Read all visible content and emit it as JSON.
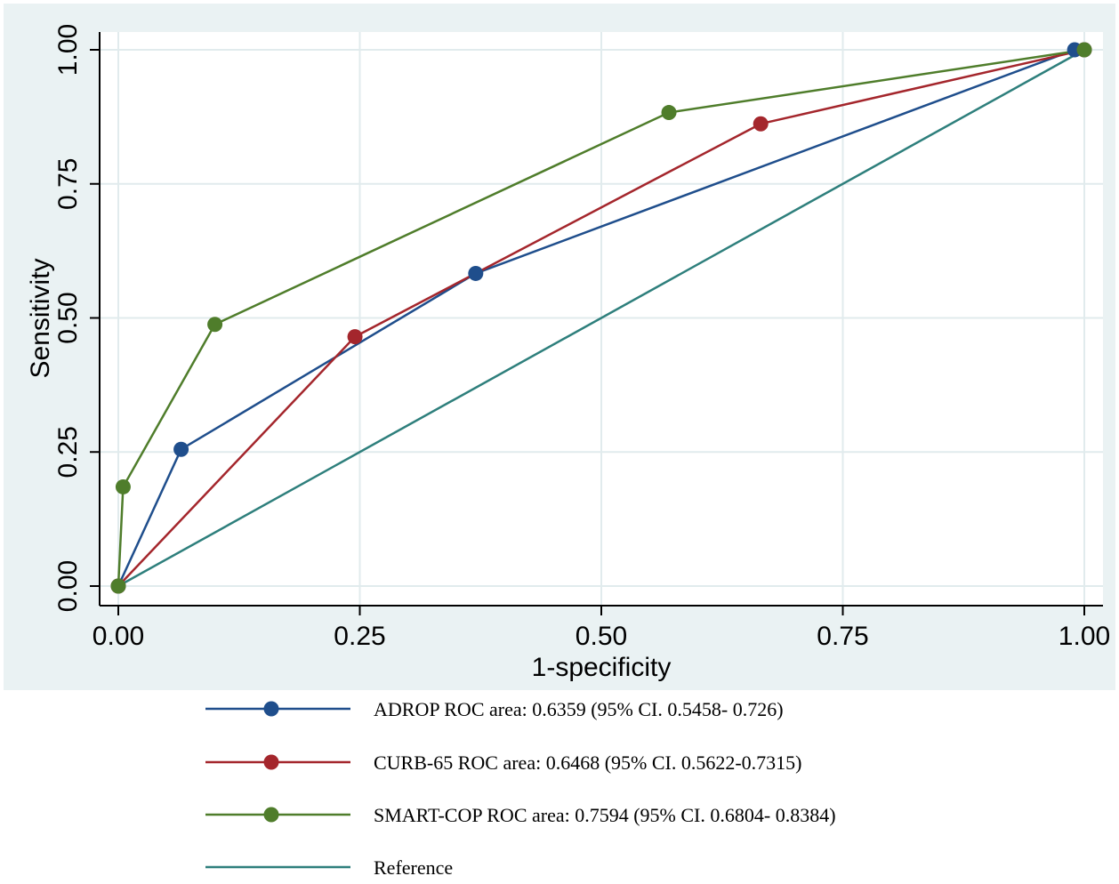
{
  "chart_data": {
    "type": "line",
    "title": "",
    "xlabel": "1-specificity",
    "ylabel": "Sensitivity",
    "xlim": [
      0,
      1
    ],
    "ylim": [
      0,
      1
    ],
    "xticks": [
      "0.00",
      "0.25",
      "0.50",
      "0.75",
      "1.00"
    ],
    "yticks": [
      "0.00",
      "0.25",
      "0.50",
      "0.75",
      "1.00"
    ],
    "xtick_values": [
      0,
      0.25,
      0.5,
      0.75,
      1
    ],
    "ytick_values": [
      0,
      0.25,
      0.5,
      0.75,
      1
    ],
    "grid": true,
    "legend_position": "bottom",
    "colors": {
      "plot_region_bg": "#eaf2f3",
      "plot_bg": "#ffffff",
      "grid": "#e1ebed"
    },
    "series": [
      {
        "name": "ADROP ROC area: 0.6359 (95% CI. 0.5458- 0.726)",
        "color": "#1f4e8c",
        "markers": true,
        "points": [
          [
            0,
            0
          ],
          [
            0.065,
            0.255
          ],
          [
            0.37,
            0.583
          ],
          [
            0.99,
            1.0
          ],
          [
            1.0,
            1.0
          ]
        ]
      },
      {
        "name": "CURB-65 ROC area: 0.6468 (95% CI. 0.5622-0.7315)",
        "color": "#a4262c",
        "markers": true,
        "points": [
          [
            0,
            0
          ],
          [
            0.245,
            0.465
          ],
          [
            0.665,
            0.862
          ],
          [
            1.0,
            1.0
          ]
        ]
      },
      {
        "name": "SMART-COP ROC area: 0.7594 (95% CI. 0.6804- 0.8384)",
        "color": "#4f7d2b",
        "markers": true,
        "points": [
          [
            0,
            0
          ],
          [
            0.005,
            0.185
          ],
          [
            0.1,
            0.488
          ],
          [
            0.57,
            0.883
          ],
          [
            1.0,
            1.0
          ]
        ]
      },
      {
        "name": "Reference",
        "color": "#2e7f7c",
        "markers": false,
        "points": [
          [
            0,
            0
          ],
          [
            1,
            1
          ]
        ]
      }
    ]
  }
}
